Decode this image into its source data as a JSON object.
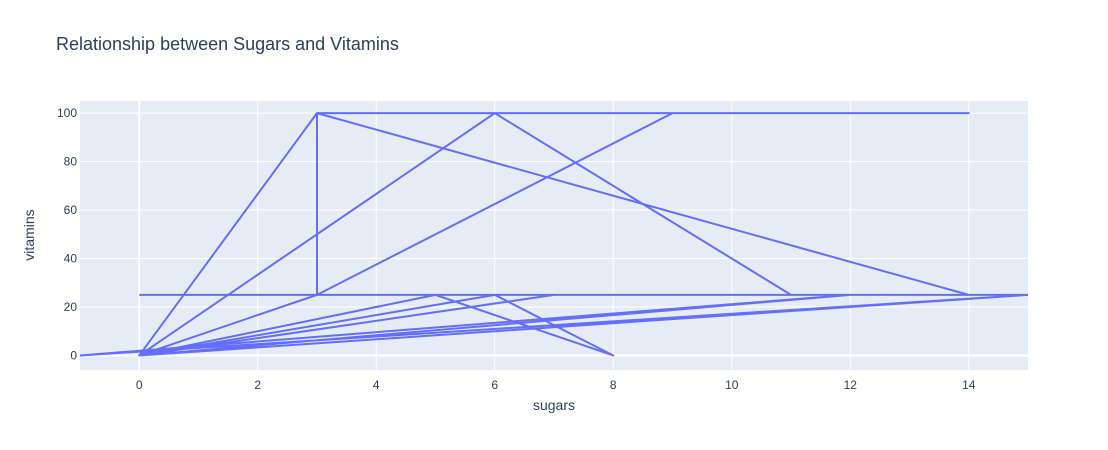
{
  "chart_data": {
    "type": "line",
    "title": "Relationship between Sugars and Vitamins",
    "xlabel": "sugars",
    "ylabel": "vitamins",
    "xlim": [
      -1,
      15
    ],
    "ylim": [
      -6,
      105
    ],
    "xticks": [
      0,
      2,
      4,
      6,
      8,
      10,
      12,
      14
    ],
    "yticks": [
      0,
      20,
      40,
      60,
      80,
      100
    ],
    "grid": true,
    "legend": "none",
    "colors": {
      "line": "#636efa",
      "plot_background": "#e5ecf6",
      "text": "#2a3f5f"
    },
    "series": [
      {
        "x": [
          0,
          3,
          3,
          3,
          9,
          3,
          0,
          6,
          8,
          6,
          0,
          6,
          11,
          6,
          14,
          3,
          14,
          5,
          8,
          5,
          0,
          7,
          0,
          12,
          -1,
          15,
          0,
          15,
          0
        ],
        "y": [
          0,
          100,
          25,
          100,
          100,
          25,
          0,
          25,
          0,
          25,
          0,
          100,
          25,
          100,
          100,
          100,
          25,
          25,
          0,
          25,
          0,
          25,
          0,
          25,
          0,
          25,
          0,
          25,
          25
        ]
      }
    ]
  }
}
